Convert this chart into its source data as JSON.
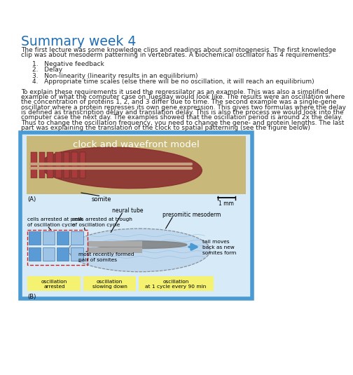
{
  "title": "Summary week 4",
  "title_color": "#1F6DB5",
  "title_fontsize": 13.5,
  "body_fontsize": 6.5,
  "bg_color": "#ffffff",
  "text_color": "#222222",
  "intro_line1": "The first lecture was some knowledge clips and readings about somitogenesis. The first knowledge",
  "intro_line2": "clip was about mesoderm patterning in vertebrates. A biochemical oscillator has 4 requirements:",
  "list_items": [
    "Negative feedback",
    "Delay",
    "Non-linearity (linearity results in an equilibrium)",
    "Appropriate time scales (else there will be no oscillation, it will reach an equilibrium)"
  ],
  "body_lines": [
    "To explain these requirements it used the repressilator as an example. This was also a simplified",
    "example of what the computer case on Tuesday would look like. The results were an oscillation where",
    "the concentration of proteins 1, 2, and 3 differ due to time. The second example was a single-gene",
    "oscillator where a protein represses its own gene expression. This gives two formulas where the delay",
    "is defined as transcription delay and translation delay. This is also the process we would look into the",
    "computer case the next day. The examples showed that the oscillation period is around 2x the delay.",
    "Thus to change the oscillation frequency, you need to change the gene- and protein lengths. The last",
    "part was explaining the translation of the clock to spatial patterning (see the figure below)"
  ],
  "figure_border_color": "#4A9AD4",
  "figure_bg_color": "#D6EAF8",
  "clock_title": "clock and wavefront model",
  "clock_title_fontsize": 9.5,
  "yellow_bg": "#F5F272",
  "oscillation_labels": [
    "oscillation\narrested",
    "oscillation\nslowing down",
    "oscillation\nat 1 cycle every 90 min"
  ],
  "somite_color_blue": "#5B9BD5",
  "somite_color_gray": "#9DC3E6",
  "presomitic_color": "#BDD7EE",
  "presomitic_wave_color": "#A8C8E8",
  "arrow_color": "#4A9AD4",
  "img_bg_color": "#C8B87A",
  "embryo_color": "#8B3030"
}
